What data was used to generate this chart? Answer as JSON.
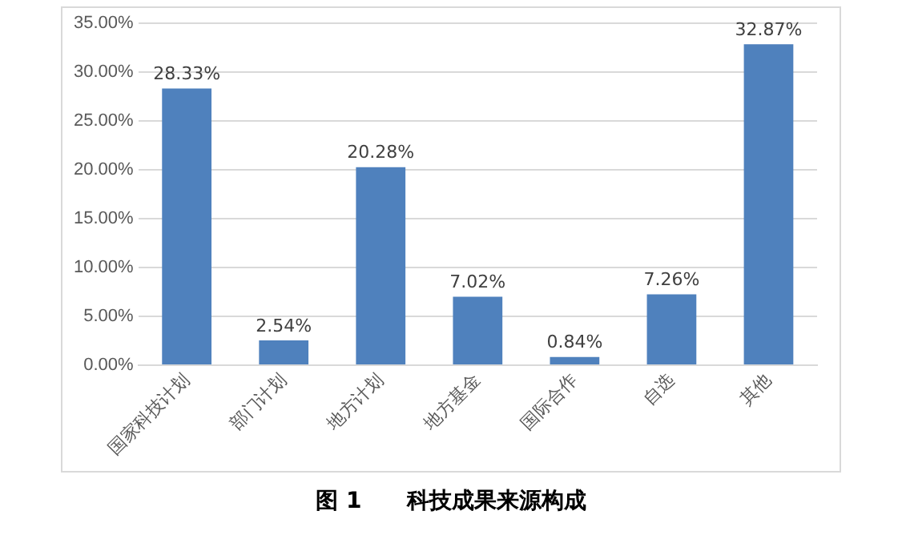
{
  "chart_data": {
    "type": "bar",
    "title": "图 1　　科技成果来源构成",
    "categories": [
      "国家科技计划",
      "部门计划",
      "地方计划",
      "地方基金",
      "国际合作",
      "自选",
      "其他"
    ],
    "values": [
      28.33,
      2.54,
      20.28,
      7.02,
      0.84,
      7.26,
      32.87
    ],
    "color": "#4f81bd",
    "value_labels": [
      "28.33%",
      "2.54%",
      "20.28%",
      "7.02%",
      "0.84%",
      "7.26%",
      "32.87%"
    ],
    "ylim": [
      0,
      35
    ],
    "yticks": [
      {
        "value": 0,
        "label": "0.00%"
      },
      {
        "value": 5,
        "label": "5.00%"
      },
      {
        "value": 10,
        "label": "10.00%"
      },
      {
        "value": 15,
        "label": "15.00%"
      },
      {
        "value": 20,
        "label": "20.00%"
      },
      {
        "value": 25,
        "label": "25.00%"
      },
      {
        "value": 30,
        "label": "30.00%"
      },
      {
        "value": 35,
        "label": "35.00%"
      }
    ],
    "grid": "y",
    "legend": false
  }
}
